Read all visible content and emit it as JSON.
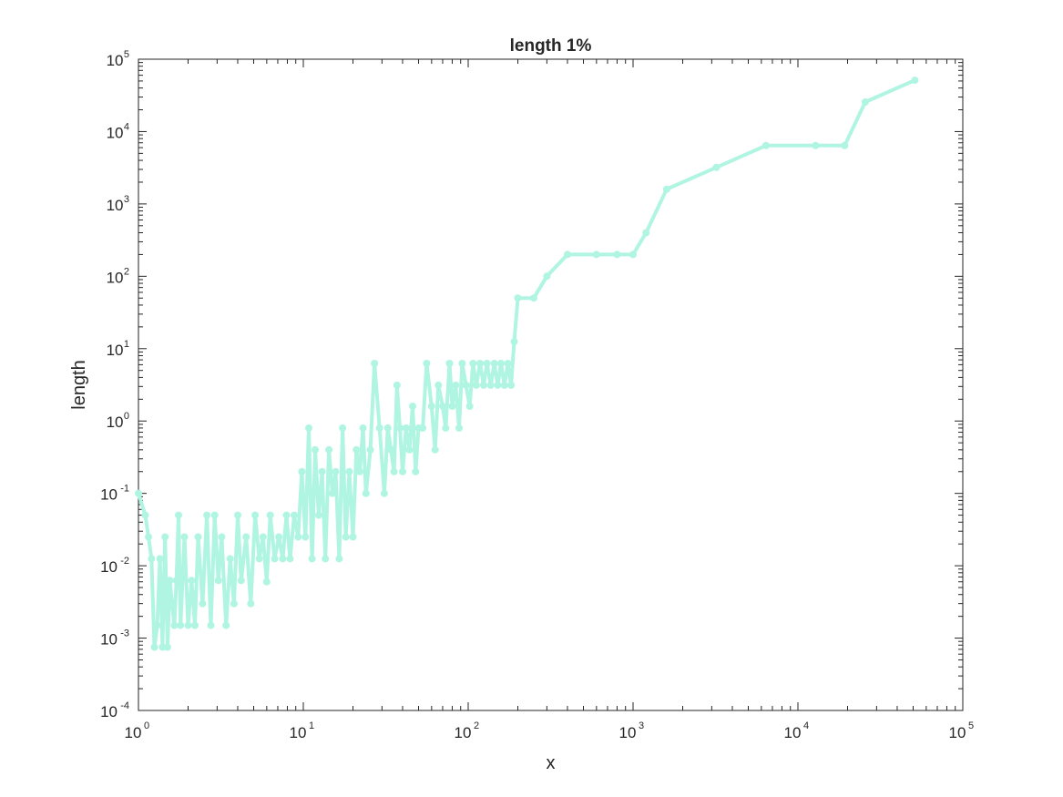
{
  "chart_data": {
    "type": "line",
    "title": "length 1%",
    "xlabel": "x",
    "ylabel": "length",
    "xscale": "log",
    "yscale": "log",
    "xlim": [
      1,
      100000
    ],
    "ylim": [
      0.0001,
      100000
    ],
    "x_ticks": [
      {
        "base": "10",
        "exp": "0",
        "value": 1
      },
      {
        "base": "10",
        "exp": "1",
        "value": 10
      },
      {
        "base": "10",
        "exp": "2",
        "value": 100
      },
      {
        "base": "10",
        "exp": "3",
        "value": 1000
      },
      {
        "base": "10",
        "exp": "4",
        "value": 10000
      },
      {
        "base": "10",
        "exp": "5",
        "value": 100000
      }
    ],
    "y_ticks": [
      {
        "base": "10",
        "exp": "-4",
        "value": 0.0001
      },
      {
        "base": "10",
        "exp": "-3",
        "value": 0.001
      },
      {
        "base": "10",
        "exp": "-2",
        "value": 0.01
      },
      {
        "base": "10",
        "exp": "-1",
        "value": 0.1
      },
      {
        "base": "10",
        "exp": "0",
        "value": 1
      },
      {
        "base": "10",
        "exp": "1",
        "value": 10
      },
      {
        "base": "10",
        "exp": "2",
        "value": 100
      },
      {
        "base": "10",
        "exp": "3",
        "value": 1000
      },
      {
        "base": "10",
        "exp": "4",
        "value": 10000
      },
      {
        "base": "10",
        "exp": "5",
        "value": 100000
      }
    ],
    "grid": false,
    "box": true,
    "series": [
      {
        "color": "#aff5e1",
        "marker": "filled-circle",
        "x": [
          1,
          1.1,
          1.15,
          1.2,
          1.25,
          1.3,
          1.35,
          1.4,
          1.45,
          1.5,
          1.55,
          1.6,
          1.65,
          1.7,
          1.75,
          1.8,
          1.9,
          2.0,
          2.1,
          2.2,
          2.3,
          2.45,
          2.6,
          2.75,
          2.9,
          3.05,
          3.2,
          3.4,
          3.6,
          3.8,
          4.0,
          4.2,
          4.5,
          4.8,
          5.1,
          5.4,
          5.7,
          6.0,
          6.3,
          6.7,
          7.1,
          7.5,
          7.9,
          8.3,
          8.8,
          9.3,
          9.8,
          10.3,
          10.8,
          11.3,
          11.8,
          12.4,
          13.0,
          13.6,
          14.3,
          15.0,
          15.7,
          16.5,
          17.3,
          18.1,
          19.0,
          20.0,
          21.0,
          22.0,
          23.0,
          24.0,
          25.5,
          27,
          29,
          31,
          32.5,
          34,
          35.5,
          37,
          38.5,
          40,
          42,
          44,
          46,
          48,
          50,
          53,
          56,
          60,
          63,
          66,
          70,
          73,
          77,
          80,
          84,
          88,
          92,
          97,
          102,
          107,
          112,
          118,
          124,
          130,
          137,
          144,
          151,
          158,
          166,
          174,
          182,
          190,
          200,
          250,
          300,
          400,
          600,
          800,
          1000,
          1200,
          1600,
          3200,
          6400,
          12800,
          19200,
          25600,
          51200
        ],
        "y": [
          0.1,
          0.05,
          0.025,
          0.0125,
          0.00075,
          0.0015,
          0.0125,
          0.00075,
          0.025,
          0.00075,
          0.00625,
          0.003,
          0.0015,
          0.00625,
          0.05,
          0.0015,
          0.025,
          0.0015,
          0.00625,
          0.0015,
          0.025,
          0.003,
          0.05,
          0.0015,
          0.05,
          0.00625,
          0.025,
          0.0015,
          0.0125,
          0.003,
          0.05,
          0.00625,
          0.025,
          0.003,
          0.05,
          0.0125,
          0.025,
          0.006,
          0.05,
          0.0125,
          0.025,
          0.0125,
          0.05,
          0.0125,
          0.05,
          0.025,
          0.2,
          0.025,
          0.8,
          0.0125,
          0.4,
          0.05,
          0.2,
          0.0125,
          0.4,
          0.1,
          0.2,
          0.0125,
          0.8,
          0.025,
          0.2,
          0.025,
          0.4,
          0.2,
          0.8,
          0.1,
          0.4,
          6.25,
          0.8,
          0.1,
          0.8,
          0.4,
          0.2,
          3.125,
          0.8,
          0.2,
          0.8,
          0.4,
          1.6,
          0.2,
          0.8,
          0.8,
          6.25,
          1.6,
          0.4,
          3.125,
          1.6,
          0.8,
          6.25,
          1.6,
          3.125,
          0.8,
          6.25,
          3.125,
          1.6,
          6.25,
          3.125,
          6.25,
          3.125,
          6.25,
          3.125,
          6.25,
          3.125,
          6.25,
          3.125,
          6.25,
          3.125,
          12.5,
          50,
          50,
          100,
          200,
          200,
          200,
          200,
          400,
          1600,
          3200,
          6400,
          6400,
          6400,
          25600,
          51200
        ]
      }
    ]
  }
}
